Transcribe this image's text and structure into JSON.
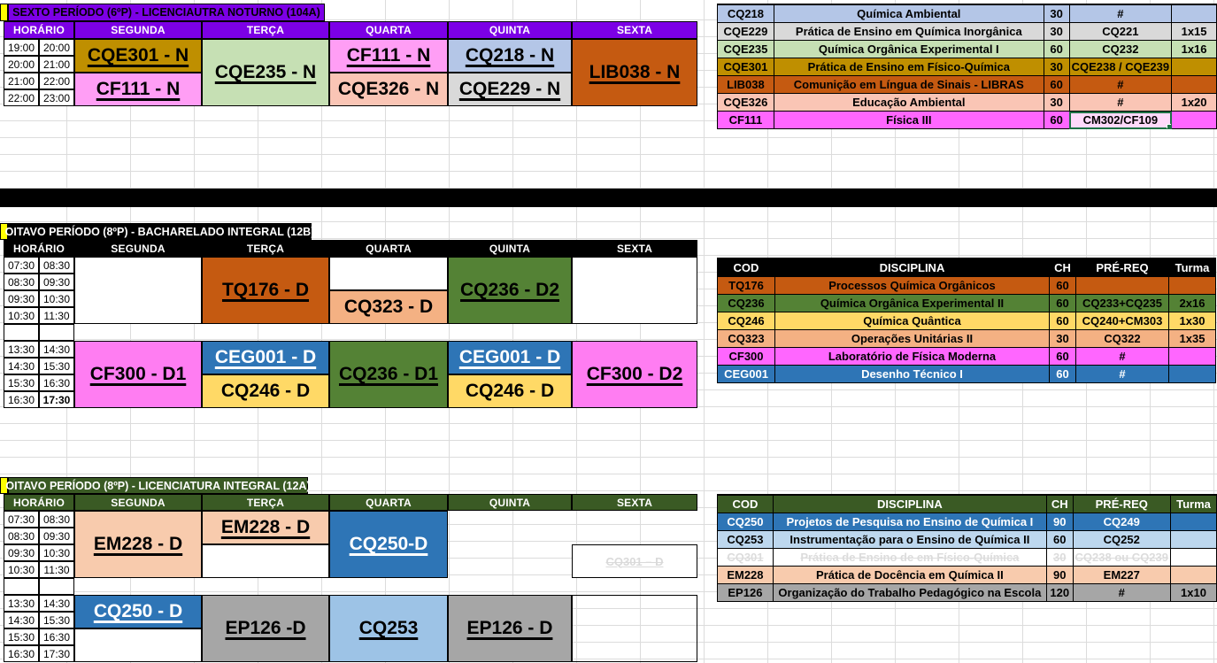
{
  "colors": {
    "purple": "#7C00E6",
    "black": "#000000",
    "dark_green": "#3A5A24",
    "yellow_strip": "#FFFF00",
    "gold": "#BF8F00",
    "pink_light": "#FF9EF5",
    "magenta": "#FF66FF",
    "magenta_block": "#FF7DF2",
    "green_light": "#C6E0B4",
    "blue_light": "#B4C6E7",
    "gray_light": "#D9D9D9",
    "salmon": "#FAC5B5",
    "orange_dark": "#C55A11",
    "green_dark": "#548235",
    "orange_light": "#F4B183",
    "gold_light": "#FFD966",
    "blue": "#2E75B6",
    "peach": "#F8CBAD",
    "sky": "#9DC3E6",
    "sky_pale": "#BDD7EE",
    "gray": "#A6A6A6",
    "selection_green": "#1E7145"
  },
  "sections": [
    {
      "title": "SEXTO PERÍODO (6ºP) - LICENCIAUTRA NOTURNO (104A)",
      "theme": {
        "title_bg": "#7C00E6",
        "title_fg": "#000000",
        "header_bg": "#7C00E6",
        "header_fg": "#FFFFFF"
      },
      "horario_label": "HORÁRIO",
      "days": [
        "SEGUNDA",
        "TERÇA",
        "QUARTA",
        "QUINTA",
        "SEXTA"
      ],
      "time_groups": [
        [
          [
            "19:00",
            "20:00"
          ],
          [
            "20:00",
            "21:00"
          ],
          [
            "21:00",
            "22:00"
          ],
          [
            "22:00",
            "23:00"
          ]
        ]
      ],
      "blocks": [
        {
          "day": 0,
          "group": 0,
          "row": 0,
          "span": 2,
          "label": "CQE301 - N",
          "bg": "#BF8F00",
          "underline": true
        },
        {
          "day": 0,
          "group": 0,
          "row": 2,
          "span": 2,
          "label": "CF111 - N",
          "bg": "#FF9EF5",
          "underline": true
        },
        {
          "day": 1,
          "group": 0,
          "row": 0,
          "span": 4,
          "label": "CQE235 - N",
          "bg": "#C6E0B4",
          "underline": true
        },
        {
          "day": 2,
          "group": 0,
          "row": 0,
          "span": 2,
          "label": "CF111 - N",
          "bg": "#FF9EF5",
          "underline": true
        },
        {
          "day": 2,
          "group": 0,
          "row": 2,
          "span": 2,
          "label": "CQE326 - N",
          "bg": "#FAC5B5",
          "underline": false
        },
        {
          "day": 3,
          "group": 0,
          "row": 0,
          "span": 2,
          "label": "CQ218 - N",
          "bg": "#B4C6E7",
          "underline": true
        },
        {
          "day": 3,
          "group": 0,
          "row": 2,
          "span": 2,
          "label": "CQE229 - N",
          "bg": "#D9D9D9",
          "underline": true
        },
        {
          "day": 4,
          "group": 0,
          "row": 0,
          "span": 4,
          "label": "LIB038 - N",
          "bg": "#C55A11",
          "underline": true
        }
      ],
      "table": {
        "headers": null,
        "rows": [
          {
            "cod": "CQ218",
            "disc": "Química Ambiental",
            "ch": "30",
            "prereq": "#",
            "turma": "",
            "bg": "#B4C6E7"
          },
          {
            "cod": "CQE229",
            "disc": "Prática de Ensino em Química Inorgânica",
            "ch": "30",
            "prereq": "CQ221",
            "turma": "1x15",
            "bg": "#D9D9D9"
          },
          {
            "cod": "CQE235",
            "disc": "Química Orgânica Experimental I",
            "ch": "60",
            "prereq": "CQ232",
            "turma": "1x16",
            "bg": "#C6E0B4"
          },
          {
            "cod": "CQE301",
            "disc": "Prática de Ensino em Físico-Química",
            "ch": "30",
            "prereq": "CQE238 / CQE239",
            "turma": "",
            "bg": "#BF8F00",
            "prereq_small": true
          },
          {
            "cod": "LIB038",
            "disc": "Comunição em Língua de Sinais - LIBRAS",
            "ch": "60",
            "prereq": "#",
            "turma": "",
            "bg": "#C55A11"
          },
          {
            "cod": "CQE326",
            "disc": "Educação Ambiental",
            "ch": "30",
            "prereq": "#",
            "turma": "1x20",
            "bg": "#FAC5B5"
          },
          {
            "cod": "CF111",
            "disc": "Física III",
            "ch": "60",
            "prereq": "CM302/CF109",
            "turma": "",
            "bg": "#FF66FF",
            "prereq_selected": true
          }
        ]
      }
    },
    {
      "title": "OITAVO PERÍODO (8ºP) - BACHARELADO INTEGRAL (12B)",
      "theme": {
        "title_bg": "#000000",
        "title_fg": "#FFFFFF",
        "header_bg": "#000000",
        "header_fg": "#FFFFFF"
      },
      "horario_label": "HORÁRIO",
      "days": [
        "SEGUNDA",
        "TERÇA",
        "QUARTA",
        "QUINTA",
        "SEXTA"
      ],
      "time_groups": [
        [
          [
            "07:30",
            "08:30"
          ],
          [
            "08:30",
            "09:30"
          ],
          [
            "09:30",
            "10:30"
          ],
          [
            "10:30",
            "11:30"
          ]
        ],
        [
          [
            "13:30",
            "14:30"
          ],
          [
            "14:30",
            "15:30"
          ],
          [
            "15:30",
            "16:30"
          ],
          [
            "16:30",
            "17:30"
          ]
        ]
      ],
      "bold_time_cell": {
        "group": 1,
        "row": 3,
        "col": 1
      },
      "blocks": [
        {
          "day": 0,
          "group": 0,
          "row": 0,
          "span": 4,
          "label": "",
          "bg": "#FFFFFF"
        },
        {
          "day": 1,
          "group": 0,
          "row": 0,
          "span": 4,
          "label": "TQ176 - D",
          "bg": "#C55A11",
          "underline": true
        },
        {
          "day": 2,
          "group": 0,
          "row": 0,
          "span": 2,
          "label": "",
          "bg": "#FFFFFF"
        },
        {
          "day": 2,
          "group": 0,
          "row": 2,
          "span": 2,
          "label": "CQ323 - D",
          "bg": "#F4B183",
          "underline": false
        },
        {
          "day": 3,
          "group": 0,
          "row": 0,
          "span": 4,
          "label": "CQ236 - D2",
          "bg": "#548235",
          "underline": true
        },
        {
          "day": 4,
          "group": 0,
          "row": 0,
          "span": 4,
          "label": "",
          "bg": "#FFFFFF"
        },
        {
          "day": 0,
          "group": 1,
          "row": 0,
          "span": 4,
          "label": "CF300 - D1",
          "bg": "#FF7DF2",
          "underline": true
        },
        {
          "day": 1,
          "group": 1,
          "row": 0,
          "span": 2,
          "label": "CEG001 - D",
          "bg": "#2E75B6",
          "fg": "#FFFFFF",
          "underline": true
        },
        {
          "day": 1,
          "group": 1,
          "row": 2,
          "span": 2,
          "label": "CQ246 - D",
          "bg": "#FFD966",
          "underline": false
        },
        {
          "day": 2,
          "group": 1,
          "row": 0,
          "span": 4,
          "label": "CQ236 - D1",
          "bg": "#548235",
          "underline": true
        },
        {
          "day": 3,
          "group": 1,
          "row": 0,
          "span": 2,
          "label": "CEG001 - D",
          "bg": "#2E75B6",
          "fg": "#FFFFFF",
          "underline": true
        },
        {
          "day": 3,
          "group": 1,
          "row": 2,
          "span": 2,
          "label": "CQ246 - D",
          "bg": "#FFD966",
          "underline": false
        },
        {
          "day": 4,
          "group": 1,
          "row": 0,
          "span": 4,
          "label": "CF300 - D2",
          "bg": "#FF7DF2",
          "underline": true
        }
      ],
      "table": {
        "headers": [
          "COD",
          "DISCIPLINA",
          "CH",
          "PRÉ-REQ",
          "Turma"
        ],
        "header_bg": "#000000",
        "rows": [
          {
            "cod": "TQ176",
            "disc": "Processos Química Orgânicos",
            "ch": "60",
            "prereq": "",
            "turma": "",
            "bg": "#C55A11"
          },
          {
            "cod": "CQ236",
            "disc": "Química Orgânica Experimental II",
            "ch": "60",
            "prereq": "CQ233+CQ235",
            "turma": "2x16",
            "bg": "#548235"
          },
          {
            "cod": "CQ246",
            "disc": "Química Quântica",
            "ch": "60",
            "prereq": "CQ240+CM303",
            "turma": "1x30",
            "bg": "#FFD966",
            "turma_small": true
          },
          {
            "cod": "CQ323",
            "disc": "Operações Unitárias II",
            "ch": "30",
            "prereq": "CQ322",
            "turma": "1x35",
            "bg": "#F4B183",
            "turma_small": true
          },
          {
            "cod": "CF300",
            "disc": "Laboratório de Física Moderna",
            "ch": "60",
            "prereq": "#",
            "turma": "",
            "bg": "#FF66FF"
          },
          {
            "cod": "CEG001",
            "disc": "Desenho Técnico I",
            "ch": "60",
            "prereq": "#",
            "turma": "",
            "bg": "#2E75B6",
            "fg": "#FFFFFF"
          }
        ]
      }
    },
    {
      "title": "OITAVO PERÍODO (8ºP) - LICENCIATURA INTEGRAL (12A)",
      "theme": {
        "title_bg": "#3A5A24",
        "title_fg": "#FFFFFF",
        "header_bg": "#3A5A24",
        "header_fg": "#FFFFFF"
      },
      "horario_label": "HORÁRIO",
      "days": [
        "SEGUNDA",
        "TERÇA",
        "QUARTA",
        "QUINTA",
        "SEXTA"
      ],
      "time_groups": [
        [
          [
            "07:30",
            "08:30"
          ],
          [
            "08:30",
            "09:30"
          ],
          [
            "09:30",
            "10:30"
          ],
          [
            "10:30",
            "11:30"
          ]
        ],
        [
          [
            "13:30",
            "14:30"
          ],
          [
            "14:30",
            "15:30"
          ],
          [
            "15:30",
            "16:30"
          ],
          [
            "16:30",
            "17:30"
          ]
        ]
      ],
      "blocks": [
        {
          "day": 0,
          "group": 0,
          "row": 0,
          "span": 4,
          "label": "EM228 - D",
          "bg": "#F8CBAD",
          "underline": true
        },
        {
          "day": 1,
          "group": 0,
          "row": 0,
          "span": 2,
          "label": "EM228 - D",
          "bg": "#F8CBAD",
          "underline": true
        },
        {
          "day": 1,
          "group": 0,
          "row": 2,
          "span": 2,
          "label": "",
          "bg": "#FFFFFF"
        },
        {
          "day": 2,
          "group": 0,
          "row": 0,
          "span": 4,
          "label": "CQ250-D",
          "bg": "#2E75B6",
          "fg": "#FFFFFF",
          "underline": true
        },
        {
          "day": 4,
          "group": 0,
          "row": 2,
          "span": 2,
          "label": "CQ301 – D",
          "bg": "#FFFFFF",
          "faint": true
        },
        {
          "day": 0,
          "group": 1,
          "row": 0,
          "span": 2,
          "label": "CQ250 - D",
          "bg": "#2E75B6",
          "fg": "#FFFFFF",
          "underline": true
        },
        {
          "day": 0,
          "group": 1,
          "row": 2,
          "span": 2,
          "label": "",
          "bg": "#FFFFFF"
        },
        {
          "day": 1,
          "group": 1,
          "row": 0,
          "span": 4,
          "label": "EP126 -D",
          "bg": "#A6A6A6",
          "underline": true
        },
        {
          "day": 2,
          "group": 1,
          "row": 0,
          "span": 4,
          "label": "CQ253",
          "bg": "#9DC3E6",
          "underline": true
        },
        {
          "day": 3,
          "group": 1,
          "row": 0,
          "span": 4,
          "label": "EP126 - D",
          "bg": "#A6A6A6",
          "underline": true
        },
        {
          "day": 4,
          "group": 1,
          "row": 0,
          "span": 4,
          "label": "",
          "bg": "",
          "open": true
        }
      ],
      "table": {
        "headers": [
          "COD",
          "DISCIPLINA",
          "CH",
          "PRÉ-REQ",
          "Turma"
        ],
        "header_bg": "#3A5A24",
        "rows": [
          {
            "cod": "CQ250",
            "disc": "Projetos de Pesquisa no Ensino de Química I",
            "ch": "90",
            "prereq": "CQ249",
            "turma": "",
            "bg": "#2E75B6",
            "fg": "#FFFFFF"
          },
          {
            "cod": "CQ253",
            "disc": "Instrumentação para o Ensino de Química II",
            "ch": "60",
            "prereq": "CQ252",
            "turma": "",
            "bg": "#BDD7EE"
          },
          {
            "cod": "CQ301",
            "disc": "Prática de Ensino de em Físico-Química",
            "ch": "30",
            "prereq": "CQ238 ou CQ239",
            "turma": "",
            "bg": "#FFFFFF",
            "faint": true
          },
          {
            "cod": "EM228",
            "disc": "Prática de Docência em Química II",
            "ch": "90",
            "prereq": "EM227",
            "turma": "",
            "bg": "#F8CBAD"
          },
          {
            "cod": "EP126",
            "disc": "Organização do Trabalho Pedagógico na Escola",
            "ch": "120",
            "prereq": "#",
            "turma": "1x10",
            "bg": "#A6A6A6",
            "turma_small": true
          }
        ]
      }
    }
  ]
}
